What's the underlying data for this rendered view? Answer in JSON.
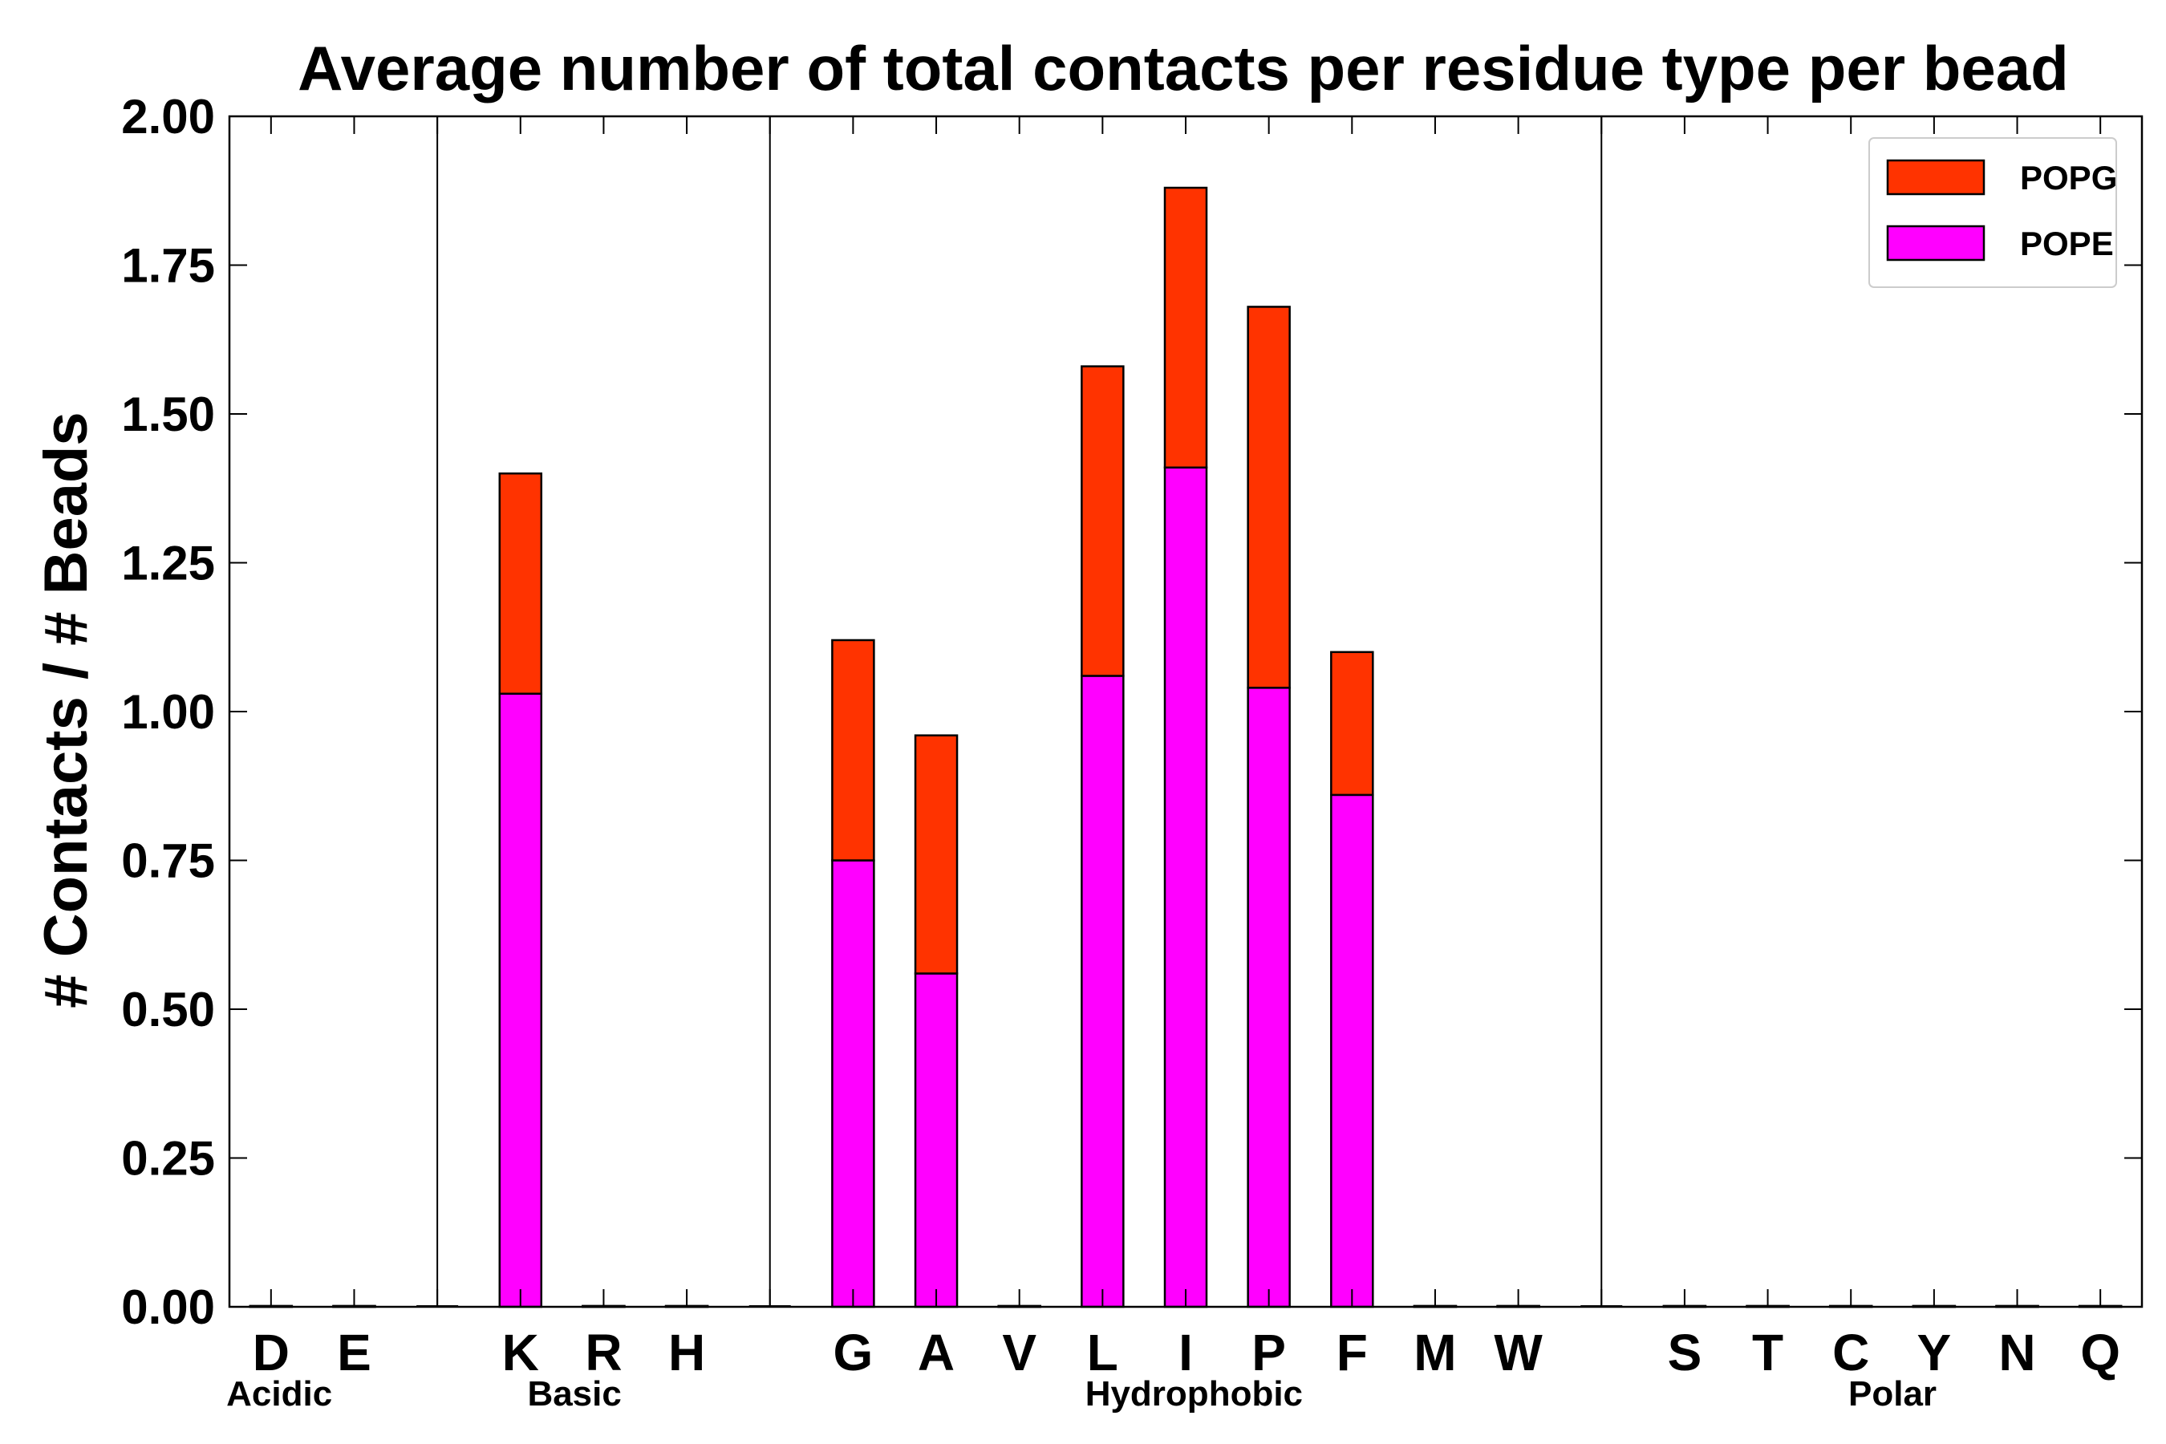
{
  "chart_data": {
    "type": "bar",
    "stacked": true,
    "title": "Average number of total contacts per residue type per bead",
    "xlabel": "",
    "ylabel": "# Contacts / # Beads",
    "ylim": [
      0,
      2.0
    ],
    "yticks": [
      "0.00",
      "0.25",
      "0.50",
      "0.75",
      "1.00",
      "1.25",
      "1.50",
      "1.75",
      "2.00"
    ],
    "categories": [
      "D",
      "E",
      "",
      "K",
      "R",
      "H",
      "",
      "G",
      "A",
      "V",
      "L",
      "I",
      "P",
      "F",
      "M",
      "W",
      "",
      "S",
      "T",
      "C",
      "Y",
      "N",
      "Q"
    ],
    "series": [
      {
        "name": "POPE",
        "color": "#ff00ff",
        "values": [
          0,
          0,
          0,
          1.03,
          0,
          0,
          0,
          0.75,
          0.56,
          0,
          1.06,
          1.41,
          1.04,
          0.86,
          0,
          0,
          0,
          0,
          0,
          0,
          0,
          0,
          0
        ]
      },
      {
        "name": "POPG",
        "color": "#ff3300",
        "values": [
          0,
          0,
          0,
          0.37,
          0,
          0,
          0,
          0.37,
          0.4,
          0,
          0.52,
          0.47,
          0.64,
          0.24,
          0,
          0,
          0,
          0,
          0,
          0,
          0,
          0,
          0
        ]
      }
    ],
    "groups": [
      {
        "name": "Acidic",
        "label_index": 0.1
      },
      {
        "name": "Basic",
        "label_index": 3.65
      },
      {
        "name": "Hydrophobic",
        "label_index": 11.1
      },
      {
        "name": "Polar",
        "label_index": 19.5
      }
    ],
    "group_dividers": [
      2,
      6,
      16
    ],
    "legend": [
      {
        "name": "POPG",
        "color": "#ff3300"
      },
      {
        "name": "POPE",
        "color": "#ff00ff"
      }
    ],
    "legend_position": "top-right",
    "grid": false
  }
}
